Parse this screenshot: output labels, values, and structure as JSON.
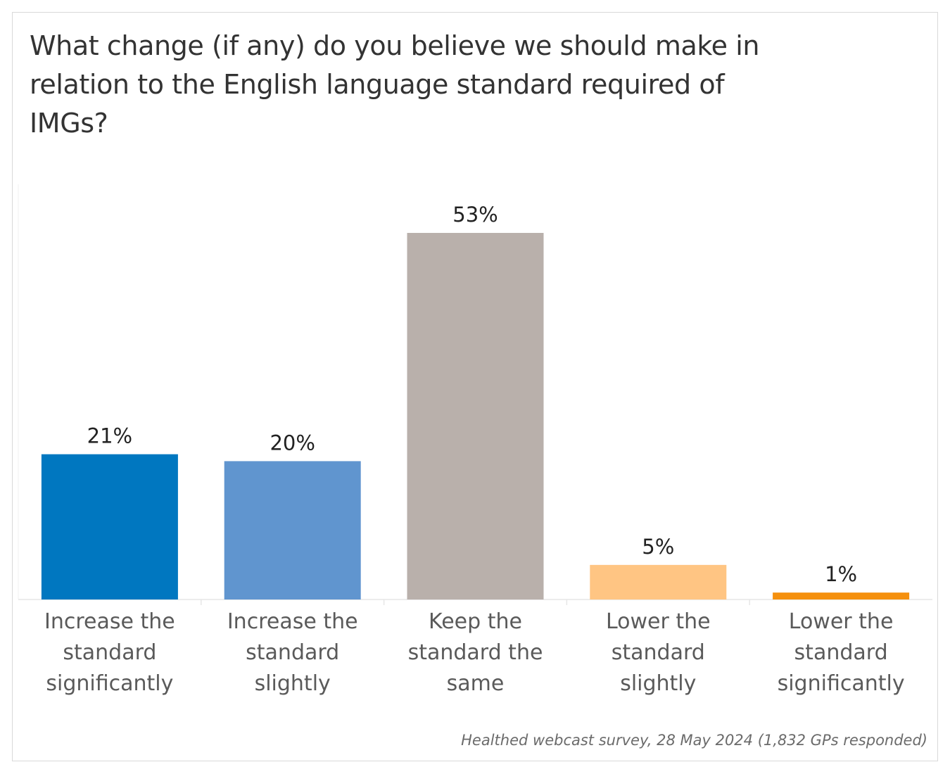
{
  "chart_data": {
    "type": "bar",
    "title": "What change (if any) do you believe we should make in relation to the English language standard required of IMGs?",
    "categories": [
      "Increase the standard significantly",
      "Increase the standard slightly",
      "Keep the standard the same",
      "Lower the standard slightly",
      "Lower the standard significantly"
    ],
    "category_lines": [
      [
        "Increase the",
        "standard",
        "significantly"
      ],
      [
        "Increase the",
        "standard",
        "slightly"
      ],
      [
        "Keep the",
        "standard the",
        "same"
      ],
      [
        "Lower the",
        "standard",
        "slightly"
      ],
      [
        "Lower the",
        "standard",
        "significantly"
      ]
    ],
    "values": [
      21,
      20,
      53,
      5,
      1
    ],
    "value_labels": [
      "21%",
      "20%",
      "53%",
      "5%",
      "1%"
    ],
    "colors": [
      "#0077c0",
      "#6095cf",
      "#b9b0ab",
      "#ffc583",
      "#f5900e"
    ],
    "ylim": [
      0,
      60
    ],
    "grid": false,
    "source": "Healthed webcast survey, 28 May 2024 (1,832 GPs responded)"
  }
}
